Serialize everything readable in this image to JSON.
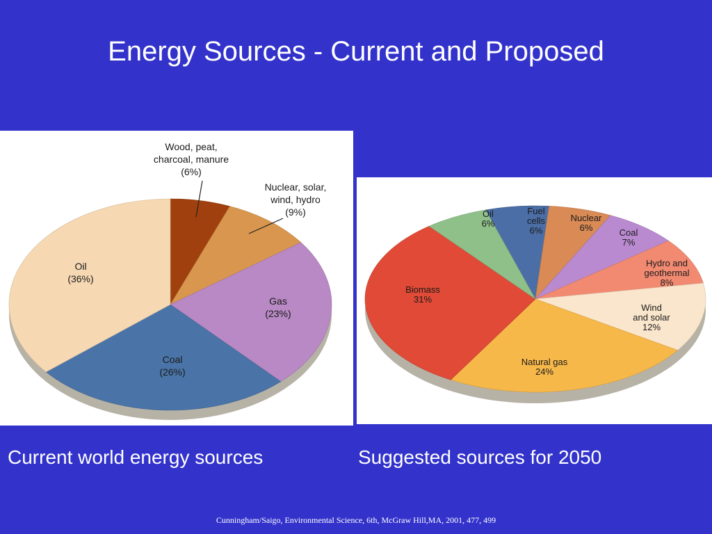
{
  "slide": {
    "title": "Energy Sources - Current and Proposed",
    "caption_left": "Current world energy sources",
    "caption_right": "Suggested sources for 2050",
    "citation": "Cunningham/Saigo, Environmental Science, 6th, McGraw Hill,MA, 2001, 477, 499",
    "background_color": "#3333cc"
  },
  "chart_data": [
    {
      "type": "pie",
      "title": "",
      "slices": [
        {
          "label_lines": [
            "Wood, peat,",
            "charcoal, manure",
            "(6%)"
          ],
          "value": 6,
          "color": "#a0400e"
        },
        {
          "label_lines": [
            "Nuclear, solar,",
            "wind, hydro",
            "(9%)"
          ],
          "value": 9,
          "color": "#d9964e"
        },
        {
          "label_lines": [
            "Gas",
            "(23%)"
          ],
          "value": 23,
          "color": "#b889c4"
        },
        {
          "label_lines": [
            "Coal",
            "(26%)"
          ],
          "value": 26,
          "color": "#4a74a8"
        },
        {
          "label_lines": [
            "Oil",
            "(36%)"
          ],
          "value": 36,
          "color": "#f6d9b3"
        }
      ]
    },
    {
      "type": "pie",
      "title": "",
      "slices": [
        {
          "label_lines": [
            "Fuel",
            "cells",
            "6%"
          ],
          "value": 6,
          "color": "#4c6ea6"
        },
        {
          "label_lines": [
            "Nuclear",
            "6%"
          ],
          "value": 6,
          "color": "#d98a55"
        },
        {
          "label_lines": [
            "Coal",
            "7%"
          ],
          "value": 7,
          "color": "#b98ad0"
        },
        {
          "label_lines": [
            "Hydro and",
            "geothermal",
            "8%"
          ],
          "value": 8,
          "color": "#f28a72"
        },
        {
          "label_lines": [
            "Wind",
            "and solar",
            "12%"
          ],
          "value": 12,
          "color": "#fae6cc"
        },
        {
          "label_lines": [
            "Natural gas",
            "24%"
          ],
          "value": 24,
          "color": "#f7b84a"
        },
        {
          "label_lines": [
            "Biomass",
            "31%"
          ],
          "value": 31,
          "color": "#e04a36"
        },
        {
          "label_lines": [
            "Oil",
            "6%"
          ],
          "value": 6,
          "color": "#8fc08a"
        }
      ]
    }
  ]
}
